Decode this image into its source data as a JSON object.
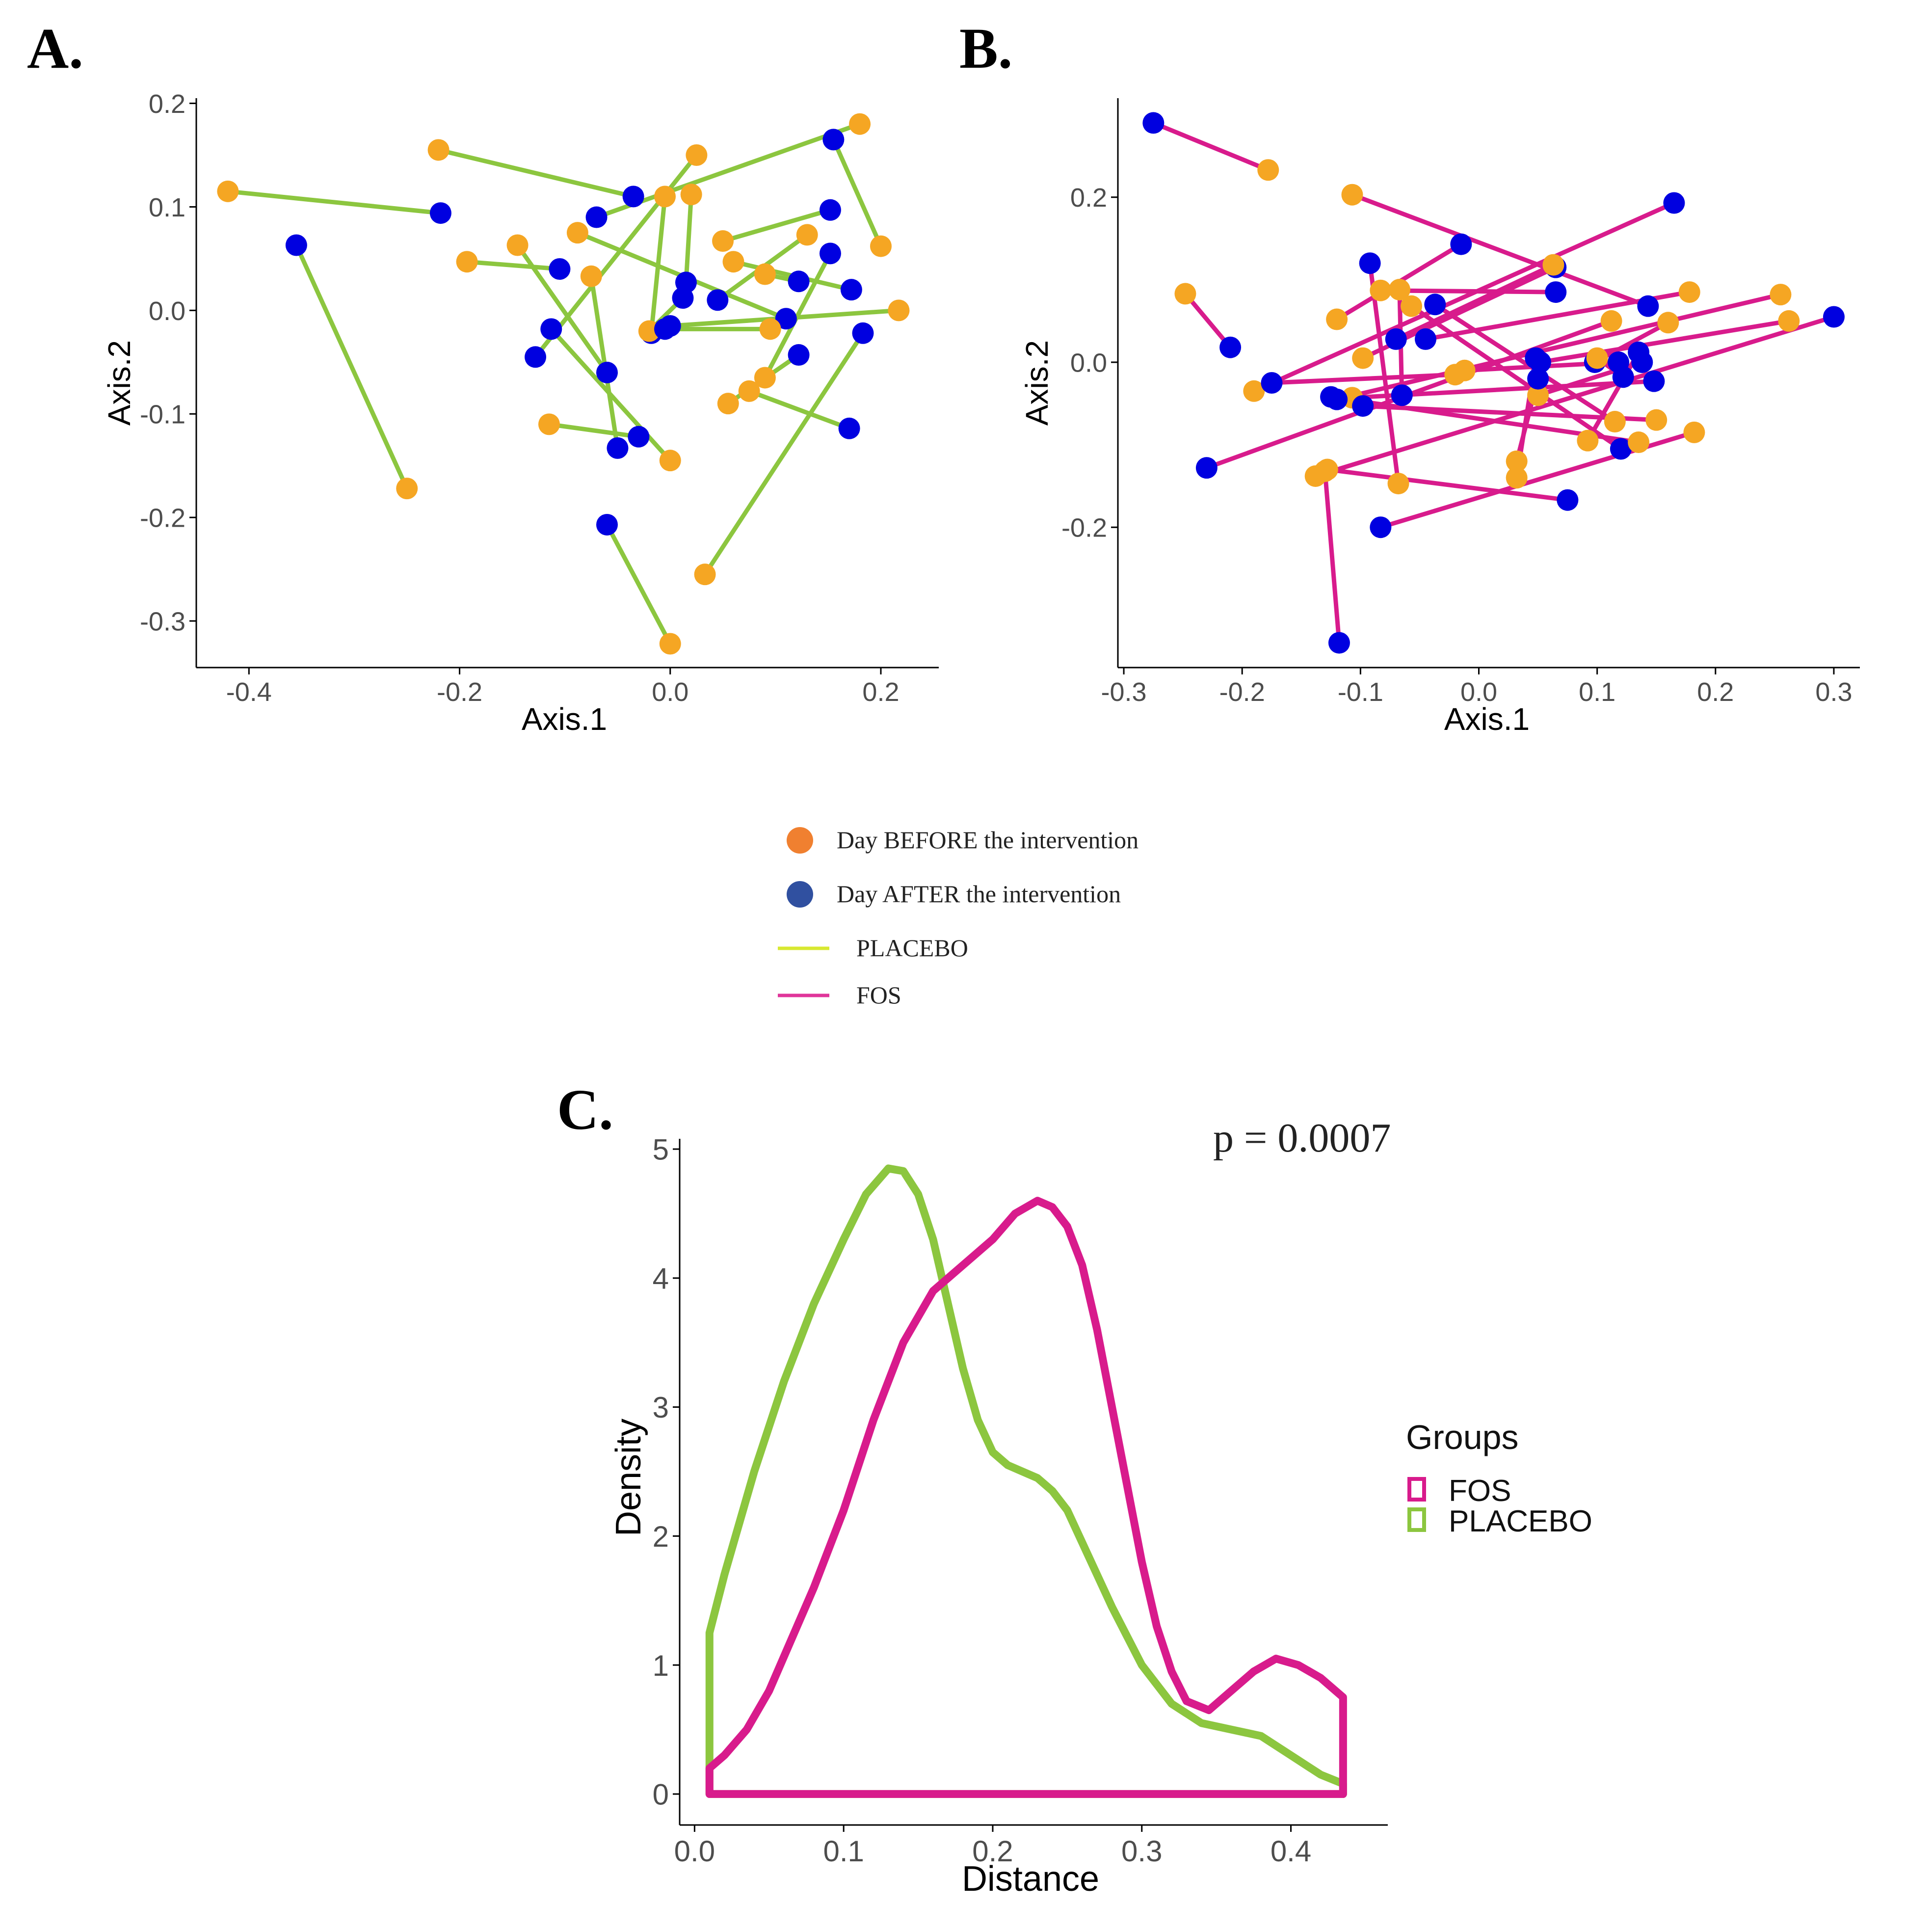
{
  "legend_ab": {
    "before_label": "Day BEFORE the intervention",
    "after_label": "Day AFTER the intervention",
    "placebo_label": "PLACEBO",
    "fos_label": "FOS"
  },
  "colors": {
    "before": "#F5A623",
    "after": "#0000E0",
    "placebo_line": "#8CC63F",
    "fos_line": "#D81B8C",
    "legend_before": "#F08030",
    "legend_after": "#3050A0",
    "legend_placebo": "#D8E830",
    "legend_fos": "#E0359A",
    "axis": "#000000"
  },
  "chart_data": [
    {
      "panel": "A.",
      "type": "scatter",
      "xlabel": "Axis.1",
      "ylabel": "Axis.2",
      "xlim": [
        -0.45,
        0.255
      ],
      "ylim": [
        -0.345,
        0.205
      ],
      "xticks": [
        -0.4,
        -0.2,
        0.0,
        0.2
      ],
      "xtick_labels": [
        "-0.4",
        "-0.2",
        "0.0",
        "0.2"
      ],
      "yticks": [
        0.2,
        0.1,
        0.0,
        -0.1,
        -0.2,
        -0.3
      ],
      "ytick_labels": [
        "0.2",
        "0.1",
        "0.0",
        "-0.1",
        "-0.2",
        "-0.3"
      ],
      "series": [
        {
          "name": "PLACEBO"
        }
      ],
      "pairs": [
        {
          "before": [
            -0.42,
            0.115
          ],
          "after": [
            -0.218,
            0.094
          ]
        },
        {
          "before": [
            -0.25,
            -0.172
          ],
          "after": [
            -0.355,
            0.063
          ]
        },
        {
          "before": [
            -0.22,
            0.155
          ],
          "after": [
            -0.035,
            0.11
          ]
        },
        {
          "before": [
            -0.193,
            0.047
          ],
          "after": [
            -0.105,
            0.04
          ]
        },
        {
          "before": [
            -0.145,
            0.063
          ],
          "after": [
            -0.06,
            -0.06
          ]
        },
        {
          "before": [
            -0.115,
            -0.11
          ],
          "after": [
            -0.03,
            -0.122
          ]
        },
        {
          "before": [
            -0.075,
            0.033
          ],
          "after": [
            -0.05,
            -0.133
          ]
        },
        {
          "before": [
            -0.088,
            0.075
          ],
          "after": [
            0.11,
            -0.008
          ]
        },
        {
          "before": [
            0.0,
            -0.145
          ],
          "after": [
            -0.113,
            -0.018
          ]
        },
        {
          "before": [
            0.025,
            0.15
          ],
          "after": [
            -0.128,
            -0.045
          ]
        },
        {
          "before": [
            0.0,
            -0.322
          ],
          "after": [
            -0.06,
            -0.207
          ]
        },
        {
          "before": [
            -0.005,
            0.11
          ],
          "after": [
            -0.018,
            -0.022
          ]
        },
        {
          "before": [
            0.02,
            0.112
          ],
          "after": [
            0.015,
            0.027
          ]
        },
        {
          "before": [
            -0.02,
            -0.02
          ],
          "after": [
            0.012,
            0.012
          ]
        },
        {
          "before": [
            0.06,
            0.047
          ],
          "after": [
            0.172,
            0.02
          ]
        },
        {
          "before": [
            0.09,
            0.035
          ],
          "after": [
            0.122,
            0.028
          ]
        },
        {
          "before": [
            0.13,
            0.073
          ],
          "after": [
            0.045,
            0.01
          ]
        },
        {
          "before": [
            0.095,
            -0.018
          ],
          "after": [
            -0.005,
            -0.018
          ]
        },
        {
          "before": [
            0.033,
            -0.255
          ],
          "after": [
            0.183,
            -0.022
          ]
        },
        {
          "before": [
            0.055,
            -0.09
          ],
          "after": [
            0.122,
            -0.043
          ]
        },
        {
          "before": [
            0.075,
            -0.078
          ],
          "after": [
            0.17,
            -0.114
          ]
        },
        {
          "before": [
            0.09,
            -0.065
          ],
          "after": [
            0.152,
            0.055
          ]
        },
        {
          "before": [
            0.2,
            0.062
          ],
          "after": [
            0.155,
            0.165
          ]
        },
        {
          "before": [
            0.05,
            0.067
          ],
          "after": [
            0.152,
            0.097
          ]
        },
        {
          "before": [
            0.18,
            0.18
          ],
          "after": [
            -0.07,
            0.09
          ]
        },
        {
          "before": [
            0.217,
            0.0
          ],
          "after": [
            0.0,
            -0.015
          ]
        }
      ]
    },
    {
      "panel": "B.",
      "type": "scatter",
      "xlabel": "Axis.1",
      "ylabel": "Axis.2",
      "xlim": [
        -0.305,
        0.322
      ],
      "ylim": [
        -0.37,
        0.32
      ],
      "xticks": [
        -0.3,
        -0.2,
        -0.1,
        0.0,
        0.1,
        0.2,
        0.3
      ],
      "xtick_labels": [
        "-0.3",
        "-0.2",
        "-0.1",
        "0.0",
        "0.1",
        "0.2",
        "0.3"
      ],
      "yticks": [
        0.2,
        0.0,
        -0.2
      ],
      "ytick_labels": [
        "0.2",
        "0.0",
        "-0.2"
      ],
      "series": [
        {
          "name": "FOS"
        }
      ],
      "pairs": [
        {
          "before": [
            -0.178,
            0.233
          ],
          "after": [
            -0.275,
            0.29
          ]
        },
        {
          "before": [
            -0.107,
            0.203
          ],
          "after": [
            0.143,
            0.068
          ]
        },
        {
          "before": [
            -0.248,
            0.083
          ],
          "after": [
            -0.21,
            0.018
          ]
        },
        {
          "before": [
            -0.19,
            -0.035
          ],
          "after": [
            0.165,
            0.193
          ]
        },
        {
          "before": [
            -0.12,
            0.052
          ],
          "after": [
            -0.015,
            0.143
          ]
        },
        {
          "before": [
            -0.083,
            0.087
          ],
          "after": [
            0.065,
            0.085
          ]
        },
        {
          "before": [
            -0.067,
            0.088
          ],
          "after": [
            -0.065,
            -0.04
          ]
        },
        {
          "before": [
            -0.098,
            0.005
          ],
          "after": [
            0.065,
            0.115
          ]
        },
        {
          "before": [
            -0.057,
            0.068
          ],
          "after": [
            0.12,
            -0.105
          ]
        },
        {
          "before": [
            -0.107,
            -0.043
          ],
          "after": [
            0.148,
            -0.023
          ]
        },
        {
          "before": [
            -0.02,
            -0.015
          ],
          "after": [
            -0.175,
            -0.025
          ]
        },
        {
          "before": [
            -0.138,
            -0.138
          ],
          "after": [
            0.3,
            0.055
          ]
        },
        {
          "before": [
            -0.068,
            -0.147
          ],
          "after": [
            -0.092,
            0.12
          ]
        },
        {
          "before": [
            0.032,
            -0.14
          ],
          "after": [
            0.048,
            0.005
          ]
        },
        {
          "before": [
            -0.128,
            -0.13
          ],
          "after": [
            0.075,
            -0.167
          ]
        },
        {
          "before": [
            0.063,
            0.118
          ],
          "after": [
            -0.07,
            0.028
          ]
        },
        {
          "before": [
            0.092,
            -0.095
          ],
          "after": [
            0.135,
            0.012
          ]
        },
        {
          "before": [
            0.112,
            0.05
          ],
          "after": [
            -0.23,
            -0.128
          ]
        },
        {
          "before": [
            0.115,
            -0.072
          ],
          "after": [
            -0.037,
            0.07
          ]
        },
        {
          "before": [
            0.135,
            -0.097
          ],
          "after": [
            -0.125,
            -0.042
          ]
        },
        {
          "before": [
            0.15,
            -0.07
          ],
          "after": [
            -0.098,
            -0.053
          ]
        },
        {
          "before": [
            0.16,
            0.048
          ],
          "after": [
            0.098,
            0.0
          ]
        },
        {
          "before": [
            0.178,
            0.085
          ],
          "after": [
            -0.045,
            0.028
          ]
        },
        {
          "before": [
            0.182,
            -0.085
          ],
          "after": [
            -0.083,
            -0.2
          ]
        },
        {
          "before": [
            0.255,
            0.082
          ],
          "after": [
            -0.12,
            -0.045
          ]
        },
        {
          "before": [
            0.262,
            0.05
          ],
          "after": [
            0.052,
            0.0
          ]
        },
        {
          "before": [
            0.05,
            -0.04
          ],
          "after": [
            0.138,
            0.0
          ]
        },
        {
          "before": [
            0.032,
            -0.12
          ],
          "after": [
            0.05,
            -0.02
          ]
        },
        {
          "before": [
            -0.13,
            -0.132
          ],
          "after": [
            -0.118,
            -0.34
          ]
        },
        {
          "before": [
            0.1,
            0.005
          ],
          "after": [
            0.122,
            -0.018
          ]
        },
        {
          "before": [
            -0.012,
            -0.01
          ],
          "after": [
            0.118,
            0.0
          ]
        }
      ]
    },
    {
      "panel": "C.",
      "type": "line",
      "title": "",
      "annotation": "p = 0.0007",
      "xlabel": "Distance",
      "ylabel": "Density",
      "xlim": [
        -0.01,
        0.465
      ],
      "ylim": [
        -0.24,
        5.08
      ],
      "xticks": [
        0.0,
        0.1,
        0.2,
        0.3,
        0.4
      ],
      "xtick_labels": [
        "0.0",
        "0.1",
        "0.2",
        "0.3",
        "0.4"
      ],
      "yticks": [
        0,
        1,
        2,
        3,
        4,
        5
      ],
      "ytick_labels": [
        "0",
        "1",
        "2",
        "3",
        "4",
        "5"
      ],
      "legend_title": "Groups",
      "series": [
        {
          "name": "FOS",
          "x": [
            0.01,
            0.02,
            0.035,
            0.05,
            0.065,
            0.08,
            0.1,
            0.12,
            0.14,
            0.16,
            0.18,
            0.2,
            0.215,
            0.23,
            0.24,
            0.25,
            0.26,
            0.27,
            0.28,
            0.29,
            0.3,
            0.31,
            0.32,
            0.33,
            0.345,
            0.36,
            0.375,
            0.39,
            0.405,
            0.42,
            0.435
          ],
          "y": [
            0.2,
            0.3,
            0.5,
            0.8,
            1.2,
            1.6,
            2.2,
            2.9,
            3.5,
            3.9,
            4.1,
            4.3,
            4.5,
            4.6,
            4.55,
            4.4,
            4.1,
            3.6,
            3.0,
            2.4,
            1.8,
            1.3,
            0.95,
            0.72,
            0.65,
            0.8,
            0.95,
            1.05,
            1.0,
            0.9,
            0.75
          ]
        },
        {
          "name": "PLACEBO",
          "x": [
            0.01,
            0.02,
            0.04,
            0.06,
            0.08,
            0.1,
            0.115,
            0.13,
            0.14,
            0.15,
            0.16,
            0.17,
            0.18,
            0.19,
            0.2,
            0.21,
            0.22,
            0.23,
            0.24,
            0.25,
            0.26,
            0.27,
            0.28,
            0.3,
            0.32,
            0.34,
            0.36,
            0.38,
            0.4,
            0.42,
            0.435
          ],
          "y": [
            1.25,
            1.7,
            2.5,
            3.2,
            3.8,
            4.3,
            4.65,
            4.85,
            4.83,
            4.65,
            4.3,
            3.8,
            3.3,
            2.9,
            2.65,
            2.55,
            2.5,
            2.45,
            2.35,
            2.2,
            1.95,
            1.7,
            1.45,
            1.0,
            0.7,
            0.55,
            0.5,
            0.45,
            0.3,
            0.15,
            0.08
          ]
        }
      ]
    }
  ]
}
